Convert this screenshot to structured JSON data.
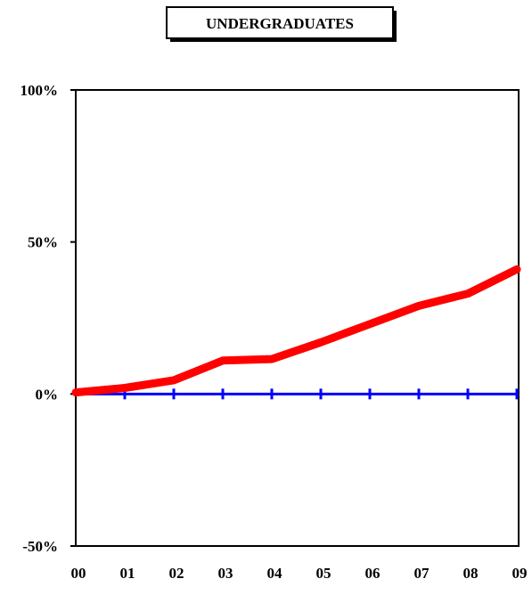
{
  "chart_data": {
    "type": "line",
    "title": "UNDERGRADUATES",
    "xlabel": "",
    "ylabel": "",
    "categories": [
      "00",
      "01",
      "02",
      "03",
      "04",
      "05",
      "06",
      "07",
      "08",
      "09"
    ],
    "series": [
      {
        "values": [
          0.5,
          2,
          4.5,
          11,
          11.5,
          17,
          23,
          29,
          33,
          41
        ],
        "color": "#ff0000"
      }
    ],
    "baseline": {
      "value": 0,
      "color": "#0000ff"
    },
    "ylim": [
      -50,
      100
    ],
    "yticks": [
      -50,
      0,
      50,
      100
    ],
    "ytick_labels": [
      "-50%",
      "0%",
      "50%",
      "100%"
    ],
    "grid": false,
    "legend": "none"
  }
}
